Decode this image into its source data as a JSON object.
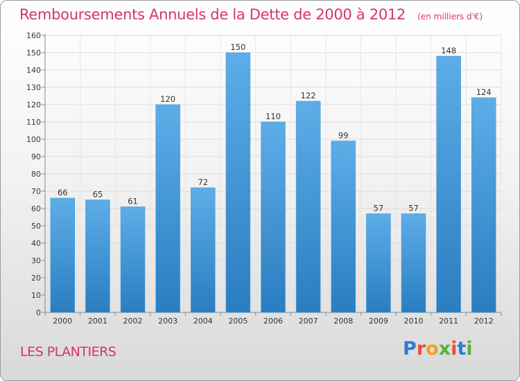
{
  "header": {
    "title": "Remboursements Annuels de la Dette de 2000 à 2012",
    "subtitle": "(en milliers d'€)"
  },
  "footer": {
    "place": "LES PLANTIERS",
    "brand": "Proxiti",
    "brand_colors": [
      "#2e7bd6",
      "#e8503a",
      "#f2a31b",
      "#55b33b",
      "#e8503a",
      "#2e7bd6",
      "#55b33b"
    ]
  },
  "chart_data": {
    "type": "bar",
    "title": "Remboursements Annuels de la Dette de 2000 à 2012",
    "subtitle": "(en milliers d'€)",
    "categories": [
      "2000",
      "2001",
      "2002",
      "2003",
      "2004",
      "2005",
      "2006",
      "2007",
      "2008",
      "2009",
      "2010",
      "2011",
      "2012"
    ],
    "values": [
      66,
      65,
      61,
      120,
      72,
      150,
      110,
      122,
      99,
      57,
      57,
      148,
      124
    ],
    "xlabel": "",
    "ylabel": "",
    "ylim": [
      0,
      160
    ],
    "yticks": [
      0,
      10,
      20,
      30,
      40,
      50,
      60,
      70,
      80,
      90,
      100,
      110,
      120,
      130,
      140,
      150,
      160
    ],
    "grid": true,
    "bar_color_top": "#5dade8",
    "bar_color_bottom": "#2a7dc0"
  }
}
